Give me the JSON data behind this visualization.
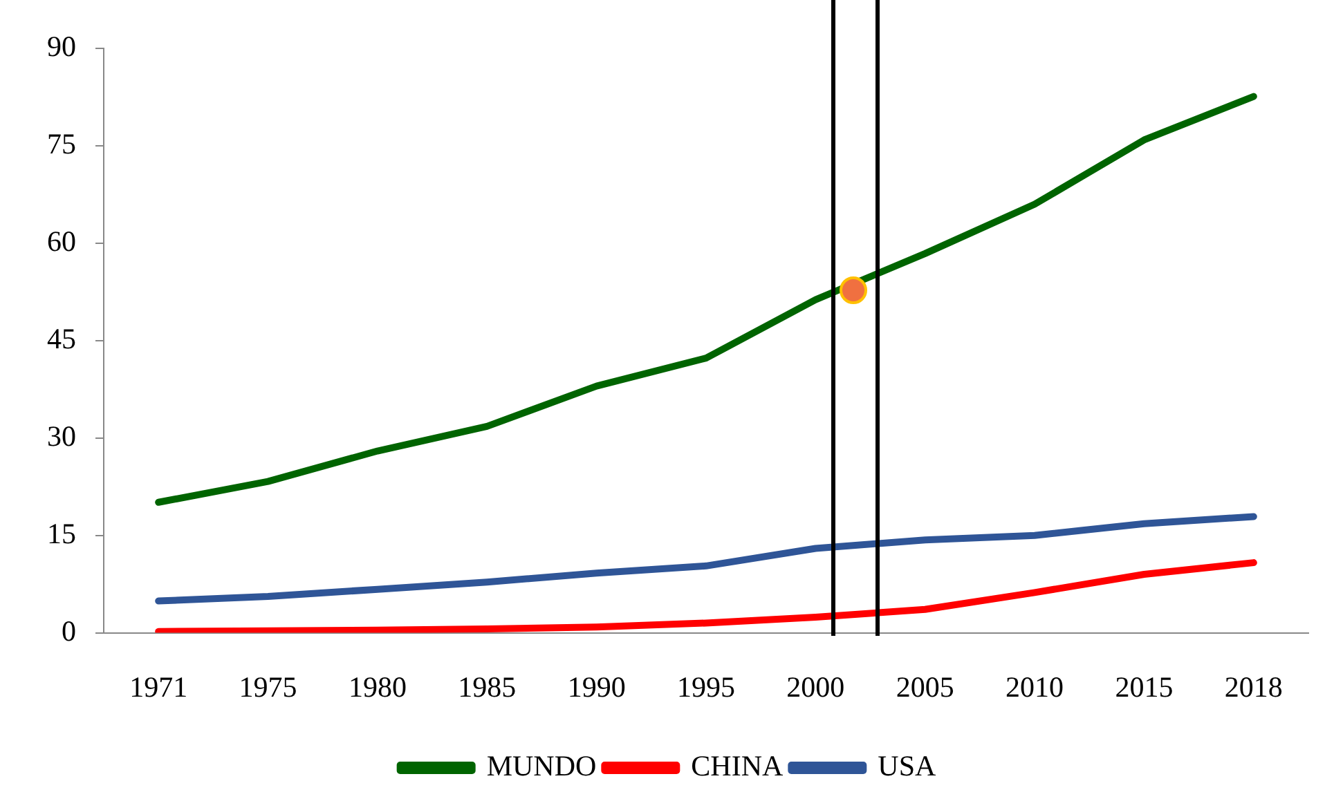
{
  "chart_data": {
    "type": "line",
    "categories": [
      "1971",
      "1975",
      "1980",
      "1985",
      "1990",
      "1995",
      "2000",
      "2005",
      "2010",
      "2015",
      "2018"
    ],
    "series": [
      {
        "name": "MUNDO",
        "color": "#006400",
        "values": [
          20.1,
          23.3,
          28,
          31.8,
          38,
          42.3,
          51.3,
          58.4,
          66,
          75.9,
          82.6
        ]
      },
      {
        "name": "CHINA",
        "color": "#ff0000",
        "values": [
          0.2,
          0.3,
          0.4,
          0.6,
          0.9,
          1.5,
          2.4,
          3.6,
          6.2,
          9,
          10.8
        ]
      },
      {
        "name": "USA",
        "color": "#2f5597",
        "values": [
          4.9,
          5.6,
          6.7,
          7.8,
          9.2,
          10.3,
          13,
          14.3,
          15,
          16.8,
          17.9
        ]
      }
    ],
    "ylim": [
      0,
      90
    ],
    "yticks": [
      0,
      15,
      30,
      45,
      60,
      75,
      90
    ],
    "grid": false,
    "legend": "bottom",
    "marker": "none",
    "line_style": "solid"
  }
}
